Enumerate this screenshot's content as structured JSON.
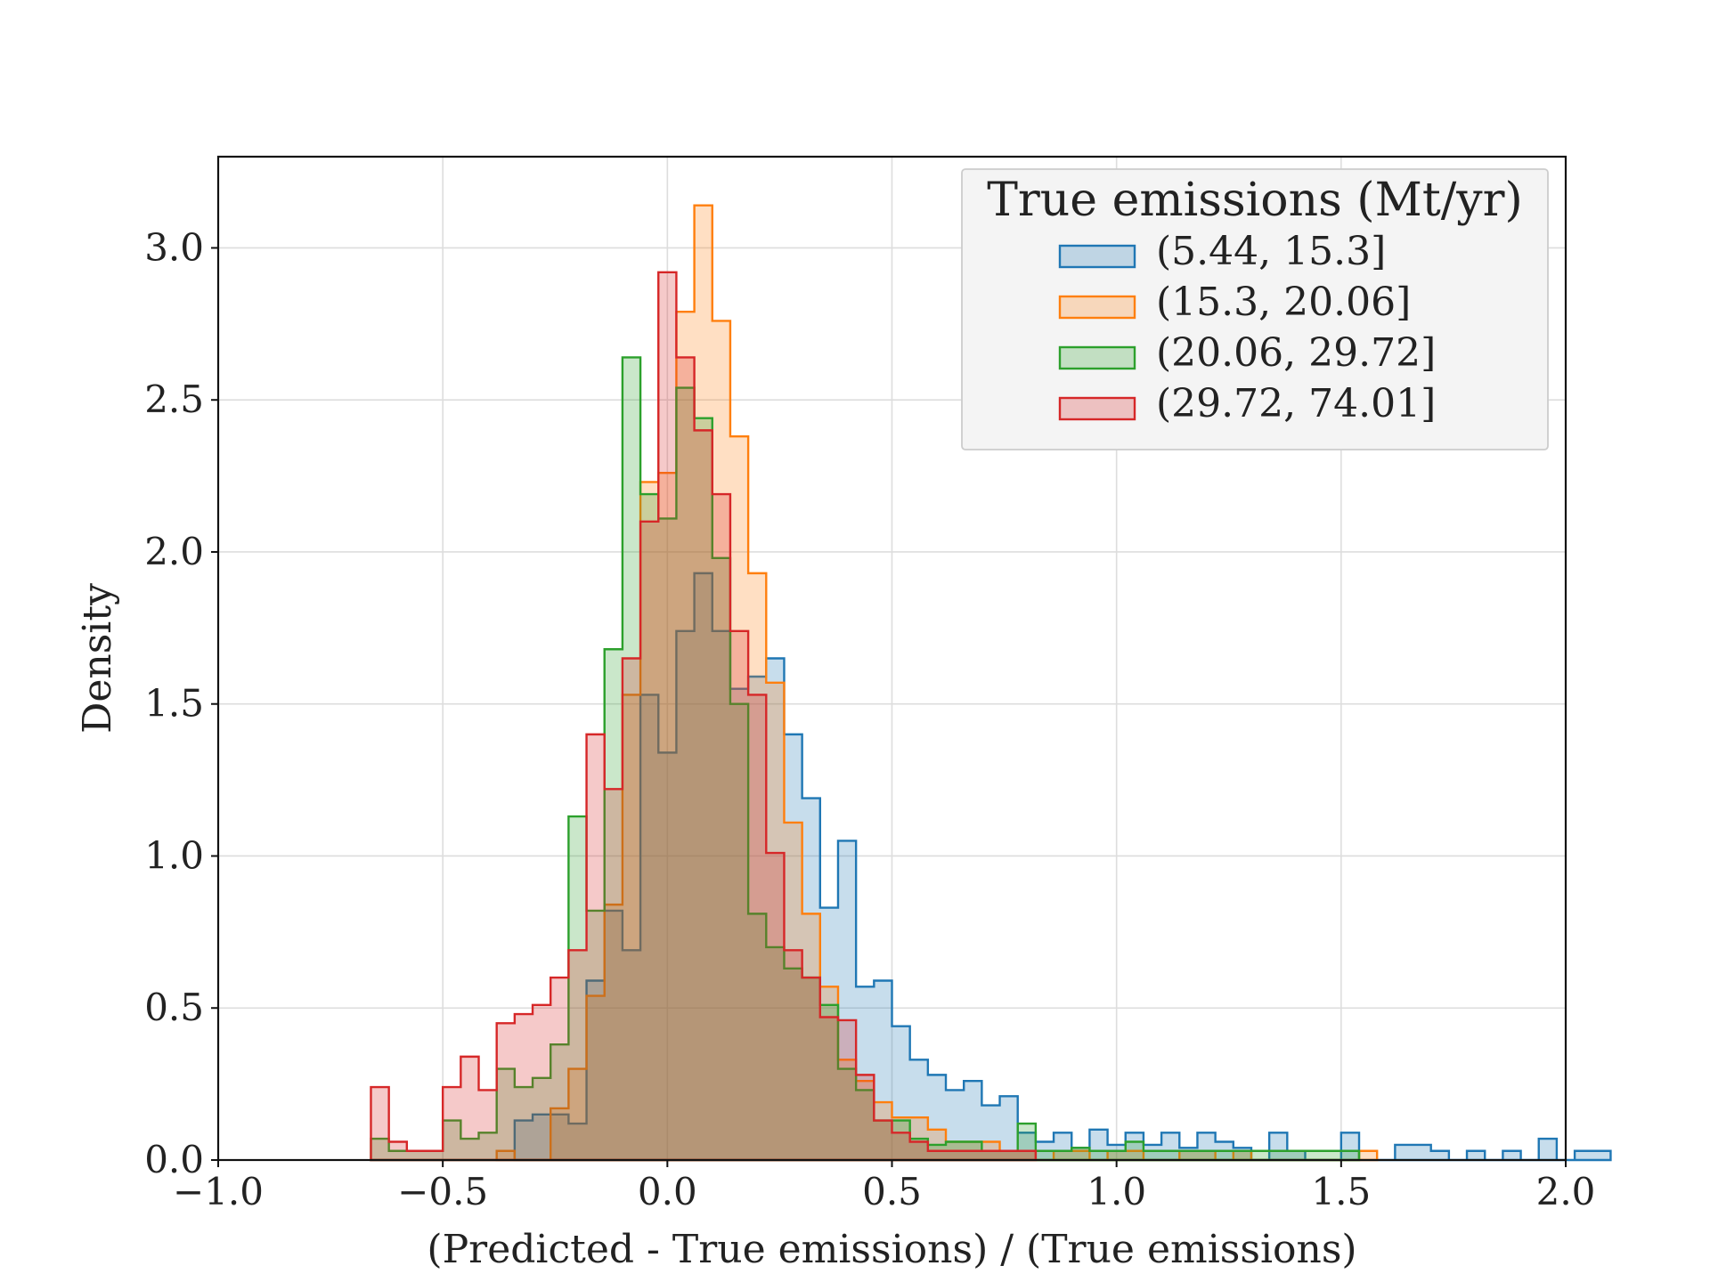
{
  "chart_data": {
    "type": "histogram",
    "xlabel": "(Predicted - True emissions) / (True emissions)",
    "ylabel": "Density",
    "xlim": [
      -1.0,
      2.0
    ],
    "ylim": [
      0.0,
      3.3
    ],
    "xticks": [
      -1.0,
      -0.5,
      0.0,
      0.5,
      1.0,
      1.5,
      2.0
    ],
    "xtick_labels": [
      "−1.0",
      "−0.5",
      "0.0",
      "0.5",
      "1.0",
      "1.5",
      "2.0"
    ],
    "yticks": [
      0.0,
      0.5,
      1.0,
      1.5,
      2.0,
      2.5,
      3.0
    ],
    "ytick_labels": [
      "0.0",
      "0.5",
      "1.0",
      "1.5",
      "2.0",
      "2.5",
      "3.0"
    ],
    "grid": true,
    "legend": {
      "title": "True emissions (Mt/yr)",
      "placement": "top-right"
    },
    "bin_width": 0.04,
    "series": [
      {
        "name": "(5.44, 15.3]",
        "color": "#1f77b4",
        "bin_start": -0.34,
        "values": [
          0.13,
          0.15,
          0.15,
          0.12,
          0.59,
          0.82,
          0.69,
          1.53,
          1.34,
          1.74,
          1.93,
          1.74,
          1.55,
          1.59,
          1.65,
          1.4,
          1.19,
          0.83,
          1.05,
          0.57,
          0.59,
          0.44,
          0.33,
          0.28,
          0.23,
          0.26,
          0.18,
          0.21,
          0.09,
          0.06,
          0.09,
          0.04,
          0.1,
          0.05,
          0.09,
          0.05,
          0.09,
          0.04,
          0.09,
          0.06,
          0.04,
          0.0,
          0.09,
          0.03,
          0.0,
          0.0,
          0.09,
          0.0,
          0.0,
          0.05,
          0.05,
          0.03,
          0.0,
          0.03,
          0.0,
          0.03,
          0.0,
          0.07,
          0.0,
          0.03,
          0.03
        ]
      },
      {
        "name": "(15.3, 20.06]",
        "color": "#ff7f0e",
        "bin_start": -0.38,
        "values": [
          0.03,
          0.0,
          0.0,
          0.17,
          0.3,
          0.54,
          0.84,
          1.53,
          2.23,
          2.26,
          2.79,
          3.14,
          2.76,
          2.38,
          1.93,
          1.57,
          1.11,
          0.81,
          0.57,
          0.33,
          0.26,
          0.19,
          0.14,
          0.14,
          0.1,
          0.06,
          0.06,
          0.06,
          0.03,
          0.03,
          0.0,
          0.03,
          0.03,
          0.0,
          0.03,
          0.03,
          0.0,
          0.0,
          0.03,
          0.03,
          0.0,
          0.03,
          0.0,
          0.0,
          0.0,
          0.0,
          0.0,
          0.0,
          0.03
        ]
      },
      {
        "name": "(20.06, 29.72]",
        "color": "#2ca02c",
        "bin_start": -0.66,
        "values": [
          0.07,
          0.03,
          0.03,
          0.03,
          0.13,
          0.07,
          0.09,
          0.3,
          0.24,
          0.27,
          0.38,
          1.13,
          0.82,
          1.68,
          2.64,
          2.19,
          2.11,
          2.54,
          2.44,
          1.98,
          1.5,
          0.81,
          0.7,
          0.63,
          0.6,
          0.51,
          0.3,
          0.23,
          0.13,
          0.13,
          0.07,
          0.05,
          0.06,
          0.06,
          0.03,
          0.03,
          0.12,
          0.03,
          0.03,
          0.04,
          0.03,
          0.03,
          0.06,
          0.03,
          0.03,
          0.03,
          0.03,
          0.03,
          0.03,
          0.03,
          0.03,
          0.03,
          0.03,
          0.03,
          0.03
        ]
      },
      {
        "name": "(29.72, 74.01]",
        "color": "#d62728",
        "bin_start": -0.66,
        "values": [
          0.24,
          0.06,
          0.03,
          0.03,
          0.24,
          0.34,
          0.23,
          0.45,
          0.48,
          0.51,
          0.6,
          0.69,
          1.4,
          1.22,
          1.65,
          2.1,
          2.92,
          2.64,
          2.4,
          2.19,
          1.74,
          1.53,
          1.01,
          0.69,
          0.6,
          0.47,
          0.46,
          0.28,
          0.13,
          0.09,
          0.06,
          0.03,
          0.03,
          0.03,
          0.03,
          0.03,
          0.03
        ]
      }
    ]
  }
}
